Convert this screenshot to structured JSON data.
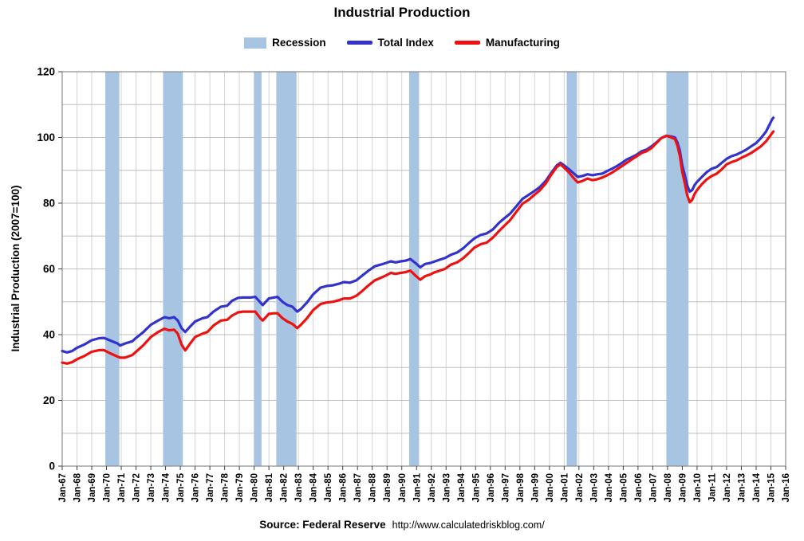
{
  "title": "Industrial Production",
  "legend": {
    "recession": "Recession",
    "total_index": "Total Index",
    "manufacturing": "Manufacturing"
  },
  "source": {
    "label": "Source: Federal Reserve",
    "url": "http://www.calculatedriskblog.com/"
  },
  "chart_data": {
    "type": "line",
    "title": "Industrial Production",
    "xlabel": "",
    "ylabel": "Industrial Production (2007=100)",
    "xlim": [
      1967,
      2016
    ],
    "ylim": [
      0,
      120
    ],
    "y_major_ticks": [
      0,
      20,
      40,
      60,
      80,
      100,
      120
    ],
    "y_grid_step": 10,
    "grid": true,
    "legend_position": "top",
    "recession_color": "#a7c4e2",
    "grid_color_h": "#bdbdbd",
    "grid_color_v": "#d4d4d4",
    "border_color": "#8c8c8c",
    "x_tick_labels": [
      "Jan-67",
      "Jan-68",
      "Jan-69",
      "Jan-70",
      "Jan-71",
      "Jan-72",
      "Jan-73",
      "Jan-74",
      "Jan-75",
      "Jan-76",
      "Jan-77",
      "Jan-78",
      "Jan-79",
      "Jan-80",
      "Jan-81",
      "Jan-82",
      "Jan-83",
      "Jan-84",
      "Jan-85",
      "Jan-86",
      "Jan-87",
      "Jan-88",
      "Jan-89",
      "Jan-90",
      "Jan-91",
      "Jan-92",
      "Jan-93",
      "Jan-94",
      "Jan-95",
      "Jan-96",
      "Jan-97",
      "Jan-98",
      "Jan-99",
      "Jan-00",
      "Jan-01",
      "Jan-02",
      "Jan-03",
      "Jan-04",
      "Jan-05",
      "Jan-06",
      "Jan-07",
      "Jan-08",
      "Jan-09",
      "Jan-10",
      "Jan-11",
      "Jan-12",
      "Jan-13",
      "Jan-14",
      "Jan-15",
      "Jan-16"
    ],
    "recessions": [
      [
        1969.92,
        1970.87
      ],
      [
        1973.83,
        1975.17
      ],
      [
        1980.0,
        1980.5
      ],
      [
        1981.5,
        1982.87
      ],
      [
        1990.5,
        1991.17
      ],
      [
        2001.17,
        2001.87
      ],
      [
        2007.92,
        2009.42
      ]
    ],
    "series": [
      {
        "name": "Total Index",
        "color": "#3333cc",
        "points": [
          [
            1967.0,
            35.0
          ],
          [
            1967.33,
            34.6
          ],
          [
            1967.67,
            35.0
          ],
          [
            1968.0,
            36.0
          ],
          [
            1968.5,
            37.0
          ],
          [
            1969.0,
            38.3
          ],
          [
            1969.5,
            38.9
          ],
          [
            1969.83,
            39.0
          ],
          [
            1970.25,
            38.2
          ],
          [
            1970.75,
            37.3
          ],
          [
            1970.92,
            36.7
          ],
          [
            1971.25,
            37.3
          ],
          [
            1971.75,
            38.0
          ],
          [
            1972.0,
            39.0
          ],
          [
            1972.5,
            40.8
          ],
          [
            1973.0,
            43.0
          ],
          [
            1973.5,
            44.3
          ],
          [
            1973.92,
            45.3
          ],
          [
            1974.25,
            45.0
          ],
          [
            1974.58,
            45.3
          ],
          [
            1974.83,
            44.3
          ],
          [
            1975.08,
            42.0
          ],
          [
            1975.33,
            40.8
          ],
          [
            1975.67,
            42.5
          ],
          [
            1976.0,
            44.0
          ],
          [
            1976.5,
            45.0
          ],
          [
            1976.83,
            45.3
          ],
          [
            1977.25,
            47.0
          ],
          [
            1977.75,
            48.5
          ],
          [
            1978.17,
            48.8
          ],
          [
            1978.5,
            50.3
          ],
          [
            1978.92,
            51.2
          ],
          [
            1979.25,
            51.3
          ],
          [
            1979.75,
            51.3
          ],
          [
            1980.08,
            51.5
          ],
          [
            1980.42,
            49.8
          ],
          [
            1980.58,
            49.0
          ],
          [
            1981.0,
            51.0
          ],
          [
            1981.33,
            51.3
          ],
          [
            1981.58,
            51.5
          ],
          [
            1981.92,
            50.0
          ],
          [
            1982.25,
            49.0
          ],
          [
            1982.58,
            48.5
          ],
          [
            1982.92,
            47.0
          ],
          [
            1983.17,
            47.8
          ],
          [
            1983.58,
            49.8
          ],
          [
            1984.0,
            52.3
          ],
          [
            1984.5,
            54.3
          ],
          [
            1984.92,
            54.8
          ],
          [
            1985.33,
            55.0
          ],
          [
            1985.75,
            55.5
          ],
          [
            1986.08,
            56.0
          ],
          [
            1986.5,
            55.8
          ],
          [
            1986.92,
            56.5
          ],
          [
            1987.33,
            58.0
          ],
          [
            1987.75,
            59.5
          ],
          [
            1988.17,
            60.8
          ],
          [
            1988.58,
            61.3
          ],
          [
            1988.92,
            61.8
          ],
          [
            1989.25,
            62.3
          ],
          [
            1989.58,
            62.0
          ],
          [
            1989.92,
            62.3
          ],
          [
            1990.25,
            62.5
          ],
          [
            1990.58,
            63.0
          ],
          [
            1990.92,
            61.8
          ],
          [
            1991.25,
            60.5
          ],
          [
            1991.58,
            61.5
          ],
          [
            1991.92,
            61.8
          ],
          [
            1992.25,
            62.3
          ],
          [
            1992.58,
            62.8
          ],
          [
            1992.92,
            63.3
          ],
          [
            1993.33,
            64.3
          ],
          [
            1993.75,
            65.0
          ],
          [
            1994.17,
            66.3
          ],
          [
            1994.58,
            68.0
          ],
          [
            1994.92,
            69.3
          ],
          [
            1995.33,
            70.3
          ],
          [
            1995.75,
            70.8
          ],
          [
            1996.17,
            72.0
          ],
          [
            1996.58,
            74.0
          ],
          [
            1996.92,
            75.3
          ],
          [
            1997.33,
            76.8
          ],
          [
            1997.75,
            79.0
          ],
          [
            1998.17,
            81.3
          ],
          [
            1998.58,
            82.5
          ],
          [
            1998.92,
            83.5
          ],
          [
            1999.33,
            84.8
          ],
          [
            1999.75,
            86.8
          ],
          [
            2000.17,
            89.5
          ],
          [
            2000.5,
            91.5
          ],
          [
            2000.75,
            92.3
          ],
          [
            2001.0,
            91.5
          ],
          [
            2001.33,
            90.3
          ],
          [
            2001.67,
            89.0
          ],
          [
            2001.92,
            88.0
          ],
          [
            2002.25,
            88.3
          ],
          [
            2002.58,
            88.8
          ],
          [
            2002.92,
            88.5
          ],
          [
            2003.25,
            88.8
          ],
          [
            2003.58,
            89.0
          ],
          [
            2003.92,
            89.8
          ],
          [
            2004.25,
            90.5
          ],
          [
            2004.58,
            91.3
          ],
          [
            2004.92,
            92.3
          ],
          [
            2005.25,
            93.3
          ],
          [
            2005.58,
            94.0
          ],
          [
            2005.92,
            94.8
          ],
          [
            2006.25,
            95.8
          ],
          [
            2006.58,
            96.3
          ],
          [
            2006.92,
            97.3
          ],
          [
            2007.25,
            98.5
          ],
          [
            2007.58,
            99.8
          ],
          [
            2007.92,
            100.5
          ],
          [
            2008.25,
            100.3
          ],
          [
            2008.5,
            100.0
          ],
          [
            2008.67,
            98.5
          ],
          [
            2008.83,
            96.0
          ],
          [
            2009.0,
            91.5
          ],
          [
            2009.17,
            88.5
          ],
          [
            2009.33,
            85.5
          ],
          [
            2009.5,
            83.5
          ],
          [
            2009.67,
            84.0
          ],
          [
            2009.83,
            85.5
          ],
          [
            2010.0,
            86.5
          ],
          [
            2010.33,
            88.0
          ],
          [
            2010.67,
            89.5
          ],
          [
            2011.0,
            90.5
          ],
          [
            2011.33,
            91.0
          ],
          [
            2011.67,
            92.3
          ],
          [
            2012.0,
            93.5
          ],
          [
            2012.33,
            94.3
          ],
          [
            2012.67,
            94.8
          ],
          [
            2013.0,
            95.5
          ],
          [
            2013.33,
            96.3
          ],
          [
            2013.67,
            97.3
          ],
          [
            2014.0,
            98.3
          ],
          [
            2014.33,
            99.8
          ],
          [
            2014.67,
            101.8
          ],
          [
            2014.92,
            104.0
          ],
          [
            2015.08,
            105.5
          ],
          [
            2015.17,
            106.0
          ]
        ]
      },
      {
        "name": "Manufacturing",
        "color": "#ee1111",
        "points": [
          [
            1967.0,
            31.5
          ],
          [
            1967.33,
            31.2
          ],
          [
            1967.67,
            31.6
          ],
          [
            1968.0,
            32.5
          ],
          [
            1968.5,
            33.5
          ],
          [
            1969.0,
            34.8
          ],
          [
            1969.5,
            35.3
          ],
          [
            1969.83,
            35.3
          ],
          [
            1970.25,
            34.3
          ],
          [
            1970.75,
            33.3
          ],
          [
            1970.92,
            33.0
          ],
          [
            1971.25,
            33.0
          ],
          [
            1971.75,
            33.8
          ],
          [
            1972.0,
            34.8
          ],
          [
            1972.5,
            36.8
          ],
          [
            1973.0,
            39.3
          ],
          [
            1973.5,
            40.8
          ],
          [
            1973.92,
            41.8
          ],
          [
            1974.25,
            41.3
          ],
          [
            1974.58,
            41.5
          ],
          [
            1974.83,
            40.3
          ],
          [
            1975.08,
            37.0
          ],
          [
            1975.33,
            35.2
          ],
          [
            1975.67,
            37.3
          ],
          [
            1976.0,
            39.3
          ],
          [
            1976.5,
            40.3
          ],
          [
            1976.83,
            40.8
          ],
          [
            1977.25,
            42.8
          ],
          [
            1977.75,
            44.3
          ],
          [
            1978.17,
            44.5
          ],
          [
            1978.5,
            45.8
          ],
          [
            1978.92,
            46.8
          ],
          [
            1979.25,
            47.0
          ],
          [
            1979.75,
            47.0
          ],
          [
            1980.08,
            47.0
          ],
          [
            1980.42,
            45.0
          ],
          [
            1980.58,
            44.3
          ],
          [
            1981.0,
            46.3
          ],
          [
            1981.33,
            46.5
          ],
          [
            1981.58,
            46.5
          ],
          [
            1981.92,
            45.0
          ],
          [
            1982.25,
            44.0
          ],
          [
            1982.58,
            43.3
          ],
          [
            1982.92,
            42.0
          ],
          [
            1983.17,
            43.0
          ],
          [
            1983.58,
            45.0
          ],
          [
            1984.0,
            47.5
          ],
          [
            1984.5,
            49.3
          ],
          [
            1984.92,
            49.8
          ],
          [
            1985.33,
            50.0
          ],
          [
            1985.75,
            50.5
          ],
          [
            1986.08,
            51.0
          ],
          [
            1986.5,
            51.0
          ],
          [
            1986.92,
            51.8
          ],
          [
            1987.33,
            53.3
          ],
          [
            1987.75,
            55.0
          ],
          [
            1988.17,
            56.5
          ],
          [
            1988.58,
            57.3
          ],
          [
            1988.92,
            58.0
          ],
          [
            1989.25,
            58.8
          ],
          [
            1989.58,
            58.5
          ],
          [
            1989.92,
            58.8
          ],
          [
            1990.25,
            59.0
          ],
          [
            1990.58,
            59.5
          ],
          [
            1990.92,
            58.0
          ],
          [
            1991.25,
            56.7
          ],
          [
            1991.58,
            57.8
          ],
          [
            1991.92,
            58.3
          ],
          [
            1992.25,
            59.0
          ],
          [
            1992.58,
            59.5
          ],
          [
            1992.92,
            60.0
          ],
          [
            1993.33,
            61.3
          ],
          [
            1993.75,
            62.0
          ],
          [
            1994.17,
            63.3
          ],
          [
            1994.58,
            65.0
          ],
          [
            1994.92,
            66.5
          ],
          [
            1995.33,
            67.5
          ],
          [
            1995.75,
            68.0
          ],
          [
            1996.17,
            69.5
          ],
          [
            1996.58,
            71.5
          ],
          [
            1996.92,
            73.0
          ],
          [
            1997.33,
            74.8
          ],
          [
            1997.75,
            77.3
          ],
          [
            1998.17,
            79.8
          ],
          [
            1998.58,
            81.0
          ],
          [
            1998.92,
            82.3
          ],
          [
            1999.33,
            83.8
          ],
          [
            1999.75,
            86.0
          ],
          [
            2000.17,
            89.0
          ],
          [
            2000.5,
            91.0
          ],
          [
            2000.75,
            91.8
          ],
          [
            2001.0,
            90.8
          ],
          [
            2001.33,
            89.3
          ],
          [
            2001.67,
            87.5
          ],
          [
            2001.92,
            86.3
          ],
          [
            2002.25,
            86.8
          ],
          [
            2002.58,
            87.5
          ],
          [
            2002.92,
            87.0
          ],
          [
            2003.25,
            87.3
          ],
          [
            2003.58,
            87.8
          ],
          [
            2003.92,
            88.5
          ],
          [
            2004.25,
            89.3
          ],
          [
            2004.58,
            90.3
          ],
          [
            2004.92,
            91.3
          ],
          [
            2005.25,
            92.3
          ],
          [
            2005.58,
            93.3
          ],
          [
            2005.92,
            94.3
          ],
          [
            2006.25,
            95.3
          ],
          [
            2006.58,
            95.8
          ],
          [
            2006.92,
            96.8
          ],
          [
            2007.25,
            98.3
          ],
          [
            2007.58,
            99.8
          ],
          [
            2007.92,
            100.5
          ],
          [
            2008.25,
            100.0
          ],
          [
            2008.5,
            99.5
          ],
          [
            2008.67,
            97.5
          ],
          [
            2008.83,
            94.5
          ],
          [
            2009.0,
            89.5
          ],
          [
            2009.17,
            86.0
          ],
          [
            2009.33,
            82.5
          ],
          [
            2009.5,
            80.3
          ],
          [
            2009.67,
            81.0
          ],
          [
            2009.83,
            82.8
          ],
          [
            2010.0,
            84.0
          ],
          [
            2010.33,
            85.8
          ],
          [
            2010.67,
            87.3
          ],
          [
            2011.0,
            88.3
          ],
          [
            2011.33,
            89.0
          ],
          [
            2011.67,
            90.3
          ],
          [
            2012.0,
            91.8
          ],
          [
            2012.33,
            92.5
          ],
          [
            2012.67,
            93.0
          ],
          [
            2013.0,
            93.8
          ],
          [
            2013.33,
            94.5
          ],
          [
            2013.67,
            95.3
          ],
          [
            2014.0,
            96.3
          ],
          [
            2014.33,
            97.3
          ],
          [
            2014.67,
            98.8
          ],
          [
            2014.92,
            100.3
          ],
          [
            2015.08,
            101.3
          ],
          [
            2015.17,
            101.8
          ]
        ]
      }
    ]
  }
}
